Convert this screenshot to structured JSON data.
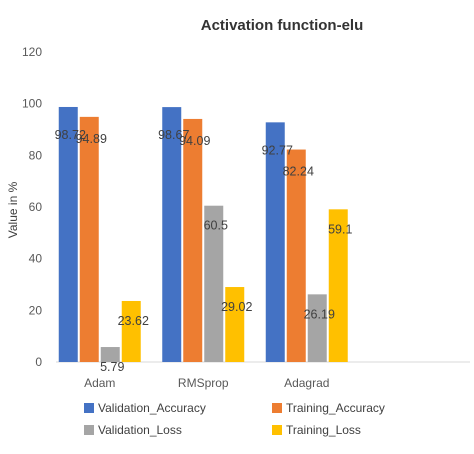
{
  "chart_data": {
    "type": "bar",
    "title": "Activation function-elu",
    "xlabel": "",
    "ylabel": "Value in %",
    "ylim": [
      0,
      120
    ],
    "yticks": [
      0,
      20,
      40,
      60,
      80,
      100,
      120
    ],
    "grid": false,
    "legend_position": "bottom",
    "categories": [
      "Adam",
      "RMSprop",
      "Adagrad"
    ],
    "series": [
      {
        "name": "Validation_Accuracy",
        "color": "#4472C4",
        "values": [
          98.72,
          98.67,
          92.77
        ]
      },
      {
        "name": "Training_Accuracy",
        "color": "#ED7D31",
        "values": [
          94.89,
          94.09,
          82.24
        ]
      },
      {
        "name": "Validation_Loss",
        "color": "#A5A5A5",
        "values": [
          5.79,
          60.5,
          26.19
        ]
      },
      {
        "name": "Training_Loss",
        "color": "#FFC000",
        "values": [
          23.62,
          29.02,
          59.1
        ]
      }
    ]
  }
}
